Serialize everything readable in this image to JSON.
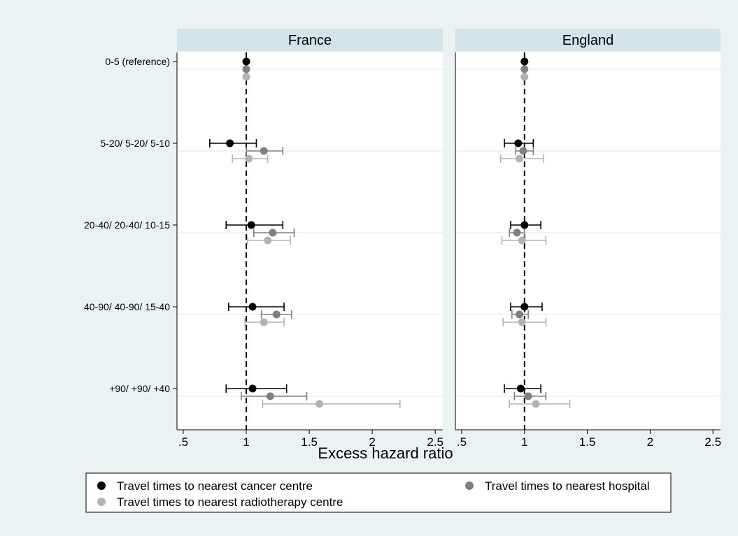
{
  "chart_data": {
    "type": "scatter",
    "subtype": "forest-plot",
    "xlabel": "Excess hazard ratio",
    "xlim": [
      0.45,
      2.56
    ],
    "xticks": [
      0.5,
      1,
      1.5,
      2,
      2.5
    ],
    "xtick_labels": [
      ".5",
      "1",
      "1.5",
      "2",
      "2.5"
    ],
    "reference_line": 1,
    "reference_line_style": "dashed",
    "grid": "horizontal",
    "categories": [
      "0-5  (reference)",
      "5-20/ 5-20/ 5-10",
      "20-40/ 20-40/ 10-15",
      "40-90/ 40-90/ 15-40",
      "+90/ +90/ +40"
    ],
    "legend_position": "bottom",
    "legend": [
      {
        "label": "Travel times to nearest cancer centre",
        "color": "#000000"
      },
      {
        "label": "Travel times to nearest hospital",
        "color": "#7f7f7f"
      },
      {
        "label": "Travel times to nearest radiotherapy centre",
        "color": "#b3b3b3"
      }
    ],
    "panels": [
      {
        "title": "France",
        "series": [
          {
            "name": "Travel times to nearest cancer centre",
            "color": "#000000",
            "points": [
              {
                "est": 1.0
              },
              {
                "est": 0.87,
                "lo": 0.71,
                "hi": 1.08
              },
              {
                "est": 1.04,
                "lo": 0.84,
                "hi": 1.29
              },
              {
                "est": 1.05,
                "lo": 0.86,
                "hi": 1.3
              },
              {
                "est": 1.05,
                "lo": 0.84,
                "hi": 1.32
              }
            ]
          },
          {
            "name": "Travel times to nearest hospital",
            "color": "#7f7f7f",
            "points": [
              {
                "est": 1.0
              },
              {
                "est": 1.14,
                "lo": 1.0,
                "hi": 1.29
              },
              {
                "est": 1.21,
                "lo": 1.06,
                "hi": 1.38
              },
              {
                "est": 1.24,
                "lo": 1.12,
                "hi": 1.36
              },
              {
                "est": 1.19,
                "lo": 0.96,
                "hi": 1.48
              }
            ]
          },
          {
            "name": "Travel times to nearest radiotherapy centre",
            "color": "#b3b3b3",
            "points": [
              {
                "est": 1.0
              },
              {
                "est": 1.02,
                "lo": 0.89,
                "hi": 1.17
              },
              {
                "est": 1.17,
                "lo": 1.01,
                "hi": 1.35
              },
              {
                "est": 1.14,
                "lo": 0.99,
                "hi": 1.3
              },
              {
                "est": 1.58,
                "lo": 1.13,
                "hi": 2.22
              }
            ]
          }
        ]
      },
      {
        "title": "England",
        "series": [
          {
            "name": "Travel times to nearest cancer centre",
            "color": "#000000",
            "points": [
              {
                "est": 1.0
              },
              {
                "est": 0.95,
                "lo": 0.84,
                "hi": 1.07
              },
              {
                "est": 1.0,
                "lo": 0.89,
                "hi": 1.13
              },
              {
                "est": 1.0,
                "lo": 0.89,
                "hi": 1.14
              },
              {
                "est": 0.97,
                "lo": 0.84,
                "hi": 1.13
              }
            ]
          },
          {
            "name": "Travel times to nearest hospital",
            "color": "#7f7f7f",
            "points": [
              {
                "est": 1.0
              },
              {
                "est": 0.99,
                "lo": 0.93,
                "hi": 1.07
              },
              {
                "est": 0.94,
                "lo": 0.88,
                "hi": 1.0
              },
              {
                "est": 0.96,
                "lo": 0.9,
                "hi": 1.03
              },
              {
                "est": 1.03,
                "lo": 0.92,
                "hi": 1.17
              }
            ]
          },
          {
            "name": "Travel times to nearest radiotherapy centre",
            "color": "#b3b3b3",
            "points": [
              {
                "est": 1.0
              },
              {
                "est": 0.96,
                "lo": 0.81,
                "hi": 1.15
              },
              {
                "est": 0.98,
                "lo": 0.82,
                "hi": 1.17
              },
              {
                "est": 0.98,
                "lo": 0.83,
                "hi": 1.17
              },
              {
                "est": 1.09,
                "lo": 0.88,
                "hi": 1.36
              }
            ]
          }
        ]
      }
    ]
  }
}
